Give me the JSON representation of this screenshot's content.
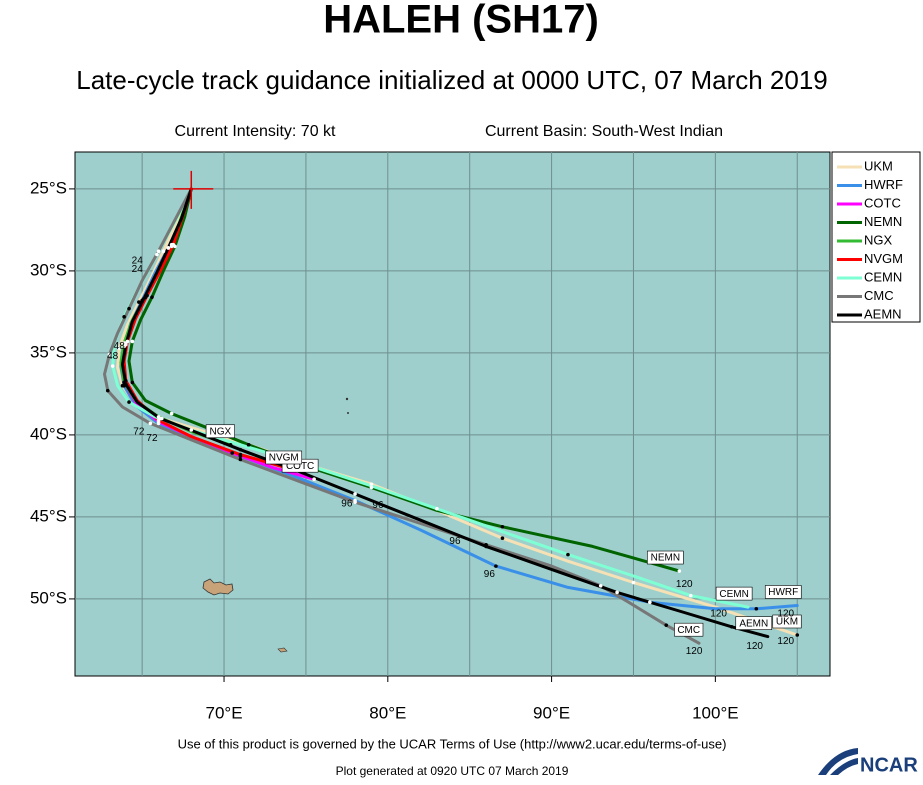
{
  "chart_data": {
    "type": "line",
    "title": "HALEH (SH17)",
    "subtitle": "Late-cycle track guidance initialized at 0000 UTC, 07 March 2019",
    "intensity": "Current Intensity: 70 kt",
    "basin": "Current Basin: South-West Indian",
    "terms": "Use of this product is governed by the UCAR Terms of Use (http://www2.ucar.edu/terms-of-use)",
    "generated": "Plot generated at 0920 UTC  07 March 2019",
    "logo": "NCAR",
    "xlim": [
      60.9,
      107
    ],
    "ylim": [
      -54.7,
      -22.75
    ],
    "xticks": [
      {
        "value": 70,
        "label": "70°E"
      },
      {
        "value": 80,
        "label": "80°E"
      },
      {
        "value": 90,
        "label": "90°E"
      },
      {
        "value": 100,
        "label": "100°E"
      }
    ],
    "xgrid": [
      65,
      75,
      85,
      95,
      105
    ],
    "yticks": [
      {
        "value": -25,
        "label": "25°S"
      },
      {
        "value": -30,
        "label": "30°S"
      },
      {
        "value": -35,
        "label": "35°S"
      },
      {
        "value": -40,
        "label": "40°S"
      },
      {
        "value": -45,
        "label": "45°S"
      },
      {
        "value": -50,
        "label": "50°S"
      }
    ],
    "grid": true,
    "legend": "top-right",
    "storm_position": {
      "x": 68,
      "y": -25
    },
    "series": [
      {
        "name": "UKM",
        "color": "#f5e1b5",
        "x": [
          68,
          67.2,
          66.3,
          65.6,
          64.8,
          64.1,
          63.6,
          63.5,
          63.8,
          64.6,
          66.2,
          68.5,
          71.5,
          75,
          79,
          83,
          87,
          91,
          95,
          100,
          105
        ],
        "y": [
          -25,
          -26.9,
          -28.8,
          -30.3,
          -31.9,
          -33.3,
          -34.7,
          -35.9,
          -37,
          -38.1,
          -39,
          -39.7,
          -40.6,
          -41.8,
          -43,
          -44.6,
          -46.3,
          -47.7,
          -49,
          -50.5,
          -52.2
        ]
      },
      {
        "name": "HWRF",
        "color": "#3a8fe8",
        "x": [
          68,
          67.4,
          66.6,
          65.8,
          65,
          64.3,
          63.9,
          63.7,
          63.9,
          64.6,
          66,
          68,
          71,
          74.5,
          78,
          82,
          86.6,
          91,
          96,
          100,
          102.5,
          105
        ],
        "y": [
          -25,
          -26.8,
          -28.6,
          -30.1,
          -31.8,
          -33.2,
          -34.6,
          -35.8,
          -37,
          -38.2,
          -39.3,
          -40.2,
          -41.3,
          -42.6,
          -44,
          -45.8,
          -48,
          -49.3,
          -50.2,
          -50.6,
          -50.6,
          -50.4
        ]
      },
      {
        "name": "COTC",
        "color": "#ff00ff",
        "x": [
          68,
          67.5,
          66.8,
          66,
          65.2,
          64.5,
          64,
          63.8,
          63.9,
          64.6,
          66,
          68,
          70.5,
          73,
          75.5
        ],
        "y": [
          -25,
          -26.6,
          -28.4,
          -30,
          -31.6,
          -33,
          -34.4,
          -35.6,
          -36.8,
          -38,
          -39.2,
          -40.1,
          -41.1,
          -42,
          -42.7
        ]
      },
      {
        "name": "NEMN",
        "color": "#006400",
        "x": [
          68,
          67.6,
          67,
          66.3,
          65.6,
          64.9,
          64.4,
          64.2,
          64.4,
          65.2,
          66.8,
          68.8,
          71.5,
          75,
          79,
          83,
          87,
          92.5,
          97.8
        ],
        "y": [
          -25,
          -26.7,
          -28.5,
          -30,
          -31.6,
          -33,
          -34.3,
          -35.5,
          -36.8,
          -37.9,
          -38.7,
          -39.5,
          -40.6,
          -41.9,
          -43.2,
          -44.6,
          -45.6,
          -46.8,
          -48.3
        ]
      },
      {
        "name": "NGX",
        "color": "#33bb33",
        "x": [
          68,
          67.4,
          66.8,
          66,
          65.2,
          64.4,
          63.9,
          63.7,
          63.9,
          64.6,
          66,
          68,
          70.4
        ],
        "y": [
          -25,
          -26.7,
          -28.5,
          -30,
          -31.6,
          -33,
          -34.4,
          -35.6,
          -36.8,
          -37.9,
          -38.9,
          -39.8,
          -40.6
        ]
      },
      {
        "name": "NVGM",
        "color": "#ff0000",
        "x": [
          68,
          67.5,
          66.9,
          66.1,
          65.3,
          64.6,
          64.1,
          63.9,
          64,
          64.7,
          66,
          68,
          71,
          74.5
        ],
        "y": [
          -25,
          -26.6,
          -28.4,
          -30,
          -31.5,
          -32.9,
          -34.3,
          -35.5,
          -36.7,
          -37.9,
          -39.1,
          -40.1,
          -41.2,
          -42.2
        ]
      },
      {
        "name": "CEMN",
        "color": "#7fffd4",
        "x": [
          68,
          67,
          65.9,
          64.8,
          63.9,
          63.3,
          63.2,
          63.5,
          64.2,
          65.8,
          68,
          71,
          75,
          79,
          83,
          87,
          91,
          95,
          98.5,
          102
        ],
        "y": [
          -25,
          -27,
          -29,
          -31,
          -32.8,
          -34.4,
          -35.8,
          -37,
          -38,
          -38.9,
          -39.7,
          -40.6,
          -41.8,
          -43.1,
          -44.5,
          -45.9,
          -47.3,
          -48.6,
          -49.8,
          -50.5
        ]
      },
      {
        "name": "CMC",
        "color": "#777777",
        "x": [
          68,
          67,
          66,
          65,
          64.2,
          63.5,
          63,
          62.7,
          62.9,
          63.8,
          65.5,
          68,
          71,
          74.5,
          78,
          82,
          86,
          90,
          93,
          94.7,
          97,
          99
        ],
        "y": [
          -25,
          -26.9,
          -28.8,
          -30.6,
          -32.3,
          -33.8,
          -35.1,
          -36.3,
          -37.3,
          -38.3,
          -39.3,
          -40.3,
          -41.5,
          -42.8,
          -44.1,
          -45.4,
          -46.7,
          -48,
          -49.2,
          -50.2,
          -51.6,
          -52.7
        ]
      },
      {
        "name": "AEMN",
        "color": "#000000",
        "x": [
          68,
          67.4,
          66.6,
          65.9,
          65.1,
          64.4,
          64,
          63.8,
          64,
          64.7,
          66.1,
          68.2,
          71,
          74.5,
          78,
          82,
          86,
          90,
          94,
          98,
          101,
          103.2
        ],
        "y": [
          -25,
          -26.8,
          -28.6,
          -30.1,
          -31.7,
          -33.1,
          -34.5,
          -35.7,
          -36.9,
          -38,
          -39,
          -39.8,
          -40.9,
          -42.2,
          -43.6,
          -45.2,
          -46.8,
          -48.2,
          -49.6,
          -50.8,
          -51.7,
          -52.3
        ]
      }
    ],
    "annotations": [
      {
        "label": "24",
        "x": 64.7,
        "y": -29.4
      },
      {
        "label": "24",
        "x": 64.7,
        "y": -29.9
      },
      {
        "label": "48",
        "x": 63.2,
        "y": -35.2
      },
      {
        "label": "48",
        "x": 63.6,
        "y": -34.6
      },
      {
        "label": "72",
        "x": 65.6,
        "y": -40.2
      },
      {
        "label": "72",
        "x": 64.8,
        "y": -39.8
      },
      {
        "label": "96",
        "x": 77.5,
        "y": -44.2
      },
      {
        "label": "96",
        "x": 79.4,
        "y": -44.3
      },
      {
        "label": "96",
        "x": 84.1,
        "y": -46.5
      },
      {
        "label": "96",
        "x": 86.2,
        "y": -48.5
      },
      {
        "label": "120",
        "x": 98.1,
        "y": -49.1
      },
      {
        "label": "120",
        "x": 100.2,
        "y": -50.9
      },
      {
        "label": "120",
        "x": 104.3,
        "y": -50.9
      },
      {
        "label": "120",
        "x": 98.7,
        "y": -53.2
      },
      {
        "label": "120",
        "x": 102.4,
        "y": -52.9
      },
      {
        "label": "120",
        "x": 104.3,
        "y": -52.6
      }
    ]
  }
}
